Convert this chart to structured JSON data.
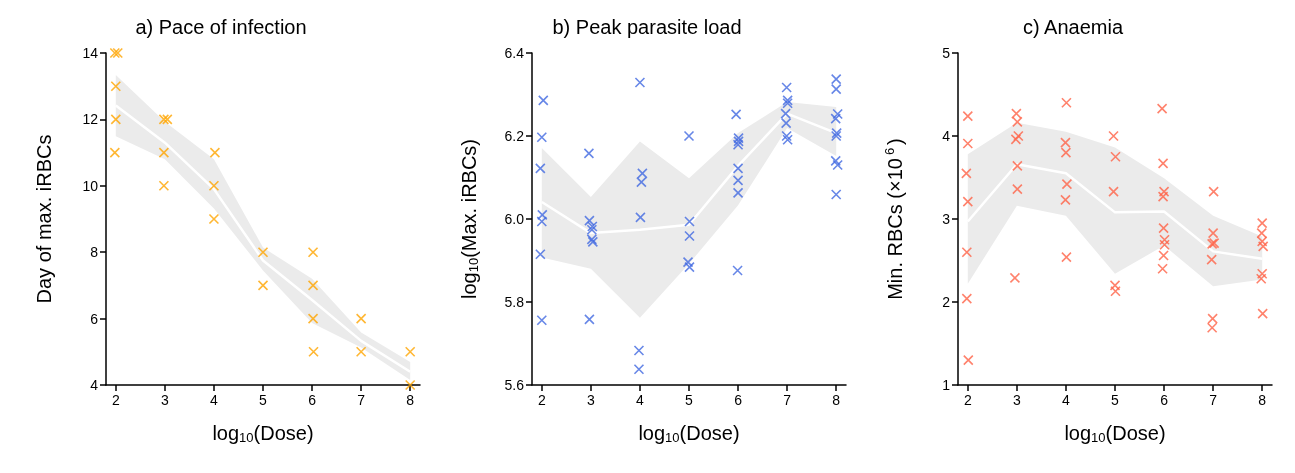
{
  "chart_data": [
    {
      "type": "scatter",
      "title": "a) Pace of infection",
      "xlabel": "log$_{10}$(Dose)",
      "ylabel": "Day of max. iRBCs",
      "xlim": [
        1.8,
        8.2
      ],
      "xticks": [
        2,
        3,
        4,
        5,
        6,
        7,
        8
      ],
      "ylim": [
        4,
        14
      ],
      "yticks": [
        4,
        6,
        8,
        10,
        12,
        14
      ],
      "grid": false,
      "series": [
        {
          "type": "line",
          "marker": "none",
          "color": "#ffffff",
          "x": [
            2,
            3,
            4,
            5,
            6,
            7,
            8
          ],
          "values": [
            12.42,
            11.3,
            9.9,
            7.75,
            6.56,
            5.33,
            4.4
          ],
          "lower": [
            11.49,
            10.8,
            9.32,
            7.45,
            5.87,
            5.13,
            4.15
          ],
          "upper": [
            13.34,
            11.93,
            10.8,
            8.14,
            7.2,
            5.58,
            4.69
          ]
        },
        {
          "marker": "cross",
          "color": "#ffa500",
          "x": [
            1.98,
            2.04,
            2,
            2,
            1.98,
            2.98,
            3.05,
            2.98,
            2.98,
            4.02,
            4,
            4,
            5,
            5,
            6.02,
            6.02,
            6.02,
            6.03,
            7,
            7,
            8,
            8
          ],
          "values": [
            14,
            14,
            13,
            12,
            11,
            12,
            12,
            11,
            10,
            11,
            10,
            9,
            8,
            7,
            8,
            7,
            6,
            5,
            6,
            5,
            5,
            4
          ]
        }
      ]
    },
    {
      "type": "scatter",
      "title": "b) Peak parasite load",
      "xlabel": "log$_{10}$(Dose)",
      "ylabel": "log$_{10}$(Max. iRBCs)",
      "xlim": [
        1.8,
        8.2
      ],
      "xticks": [
        2,
        3,
        4,
        5,
        6,
        7,
        8
      ],
      "ylim": [
        5.6,
        6.4
      ],
      "yticks": [
        5.6,
        5.8,
        {
          "value": 6,
          "label": "6.0"
        },
        6.2,
        6.4
      ],
      "grid": false,
      "series": [
        {
          "type": "line",
          "marker": "none",
          "color": "#ffffff",
          "x": [
            2,
            3,
            4,
            5,
            6,
            7,
            8
          ],
          "values": [
            6.041,
            5.966,
            5.974,
            5.986,
            6.128,
            6.254,
            6.207
          ],
          "lower": [
            5.907,
            5.88,
            5.762,
            5.892,
            6.033,
            6.219,
            6.152
          ],
          "upper": [
            6.171,
            6.053,
            6.187,
            6.098,
            6.207,
            6.282,
            6.27
          ]
        },
        {
          "marker": "cross",
          "color": "#4169e1",
          "x": [
            2.03,
            2,
            1.97,
            2.01,
            2,
            1.97,
            2,
            2.96,
            2.97,
            3.03,
            3.02,
            3.02,
            3.04,
            2.97,
            4,
            4.05,
            4.03,
            4.01,
            3.98,
            3.98,
            5,
            5.01,
            5.01,
            4.98,
            5.01,
            5.96,
            6.01,
            6.01,
            6,
            6,
            6,
            6,
            5.99,
            6.99,
            7.01,
            7.01,
            6.97,
            6.98,
            6.99,
            7.01,
            8,
            8,
            8.03,
            7.99,
            8.01,
            8,
            7.99,
            8.03,
            8.0
          ],
          "values": [
            6.286,
            6.197,
            6.122,
            6.01,
            5.994,
            5.915,
            5.756,
            6.158,
            5.996,
            5.982,
            5.974,
            5.951,
            5.945,
            5.758,
            6.329,
            6.11,
            6.089,
            6.004,
            5.683,
            5.638,
            6.2,
            5.994,
            5.959,
            5.896,
            5.884,
            6.252,
            6.195,
            6.187,
            6.179,
            6.122,
            6.093,
            6.063,
            5.876,
            6.317,
            6.286,
            6.279,
            6.254,
            6.231,
            6.2,
            6.191,
            6.337,
            6.313,
            6.253,
            6.242,
            6.207,
            6.2,
            6.14,
            6.13,
            6.059
          ]
        }
      ]
    },
    {
      "type": "scatter",
      "title": "c) Anaemia",
      "xlabel": "log$_{10}$(Dose)",
      "ylabel": "Min. RBCs (×10$^{6}$)",
      "xlim": [
        1.8,
        8.2
      ],
      "xticks": [
        2,
        3,
        4,
        5,
        6,
        7,
        8
      ],
      "ylim": [
        1,
        5
      ],
      "yticks": [
        1,
        2,
        3,
        4,
        5
      ],
      "grid": false,
      "series": [
        {
          "type": "line",
          "marker": "none",
          "color": "#ffffff",
          "x": [
            2,
            3,
            4,
            5,
            6,
            7,
            8
          ],
          "values": [
            2.97,
            3.66,
            3.55,
            3.08,
            3.09,
            2.61,
            2.52
          ],
          "lower": [
            2.22,
            3.16,
            3.04,
            2.34,
            2.68,
            2.19,
            2.27
          ],
          "upper": [
            3.78,
            4.16,
            4.05,
            3.86,
            3.49,
            3.04,
            2.79
          ]
        },
        {
          "marker": "cross",
          "color": "#ff6347",
          "x": [
            2,
            2,
            1.97,
            2,
            1.98,
            1.98,
            2.01,
            2.99,
            3.01,
            3.03,
            2.98,
            3.01,
            3.01,
            2.96,
            4.01,
            3.99,
            4,
            4.02,
            3.99,
            4.01,
            4.97,
            5.01,
            4.97,
            5,
            5.01,
            5.96,
            5.98,
            6,
            5.98,
            5.99,
            6.01,
            6.01,
            5.99,
            5.97,
            7.01,
            7,
            7.02,
            6.98,
            6.97,
            6.99,
            6.98,
            8,
            7.99,
            8,
            8.02,
            8,
            7.98,
            8.01
          ],
          "values": [
            4.24,
            3.91,
            3.55,
            3.21,
            2.6,
            2.04,
            1.3,
            4.27,
            4.17,
            4.0,
            3.96,
            3.64,
            3.36,
            2.29,
            4.4,
            3.92,
            3.8,
            3.42,
            3.23,
            2.54,
            4.0,
            3.75,
            3.33,
            2.2,
            2.13,
            4.33,
            3.67,
            3.33,
            3.27,
            2.89,
            2.75,
            2.69,
            2.56,
            2.4,
            3.33,
            2.83,
            2.71,
            2.7,
            2.51,
            1.8,
            1.69,
            2.95,
            2.83,
            2.73,
            2.67,
            2.34,
            2.28,
            1.86
          ]
        }
      ]
    }
  ]
}
